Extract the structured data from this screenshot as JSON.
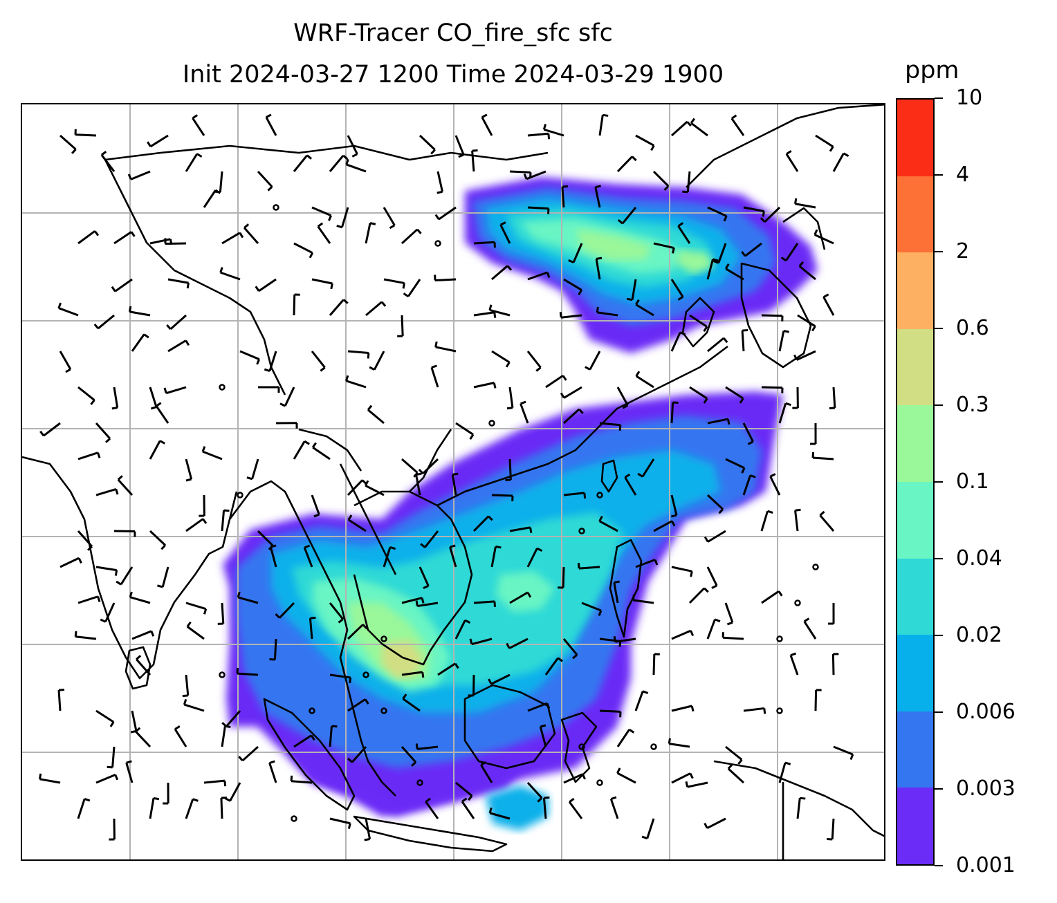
{
  "header": {
    "title_line1": "WRF-Tracer CO_fire_sfc sfc",
    "title_line2": "Init 2024-03-27 1200 Time 2024-03-29 1900"
  },
  "colorbar": {
    "unit": "ppm",
    "levels": [
      "0.001",
      "0.003",
      "0.006",
      "0.02",
      "0.04",
      "0.1",
      "0.3",
      "0.6",
      "2",
      "4",
      "10"
    ],
    "colors": [
      "#6a2cf6",
      "#3476f0",
      "#07b0ea",
      "#2fd9d6",
      "#69f5c4",
      "#9af79a",
      "#d2de83",
      "#fdb062",
      "#fd7036",
      "#fb2d17"
    ]
  },
  "map": {
    "region": "South-East Asia",
    "gridlines": true,
    "coastline_color": "#000000",
    "gridline_color": "#b3b3b3",
    "wind_symbol": "wind-barb",
    "calm_symbol": "calm-circle"
  }
}
